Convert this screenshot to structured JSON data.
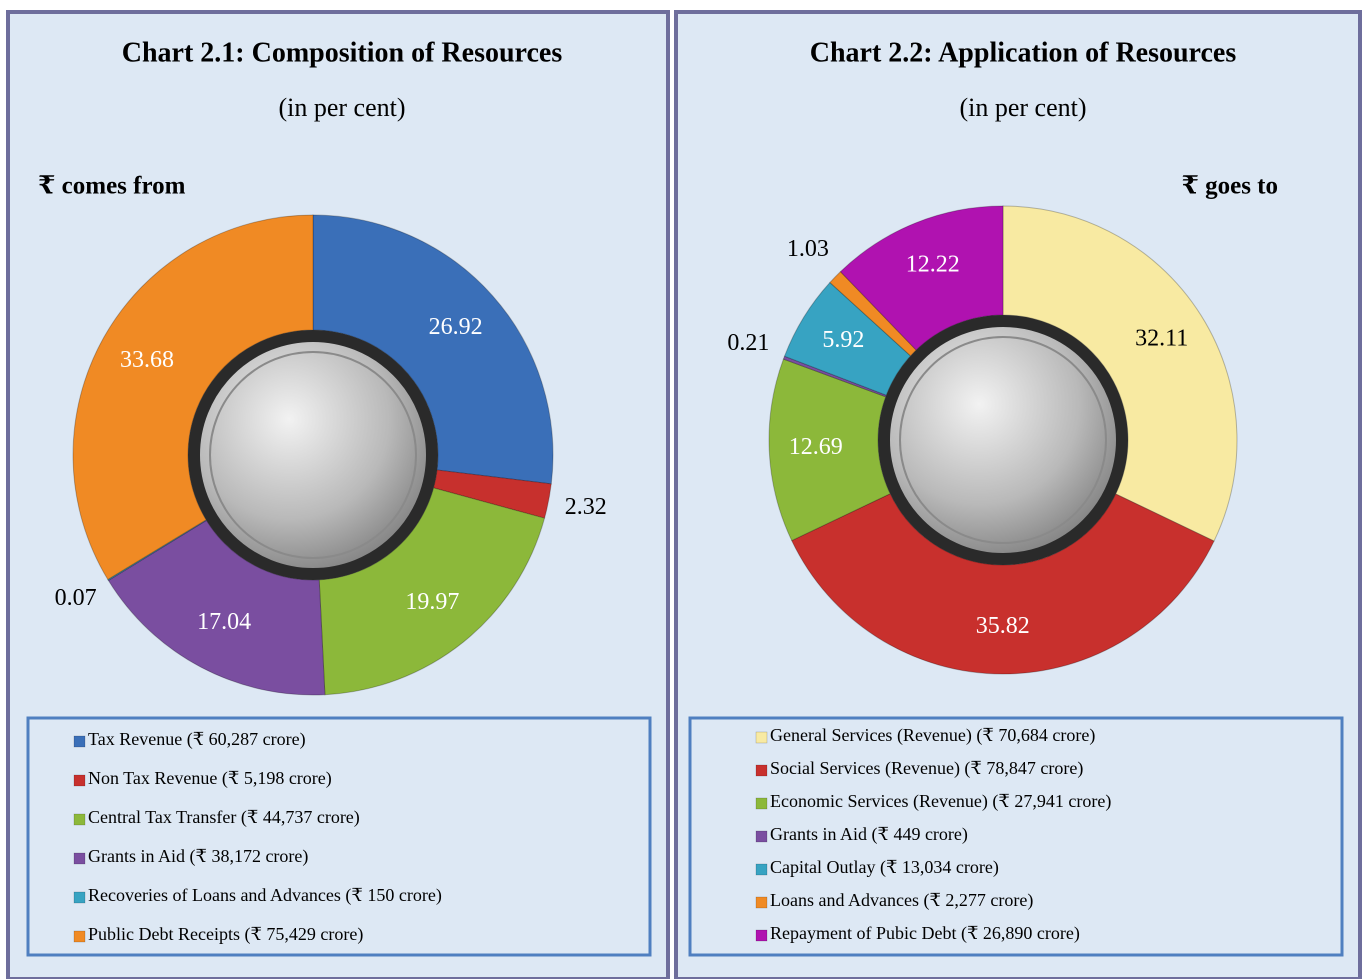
{
  "chart_data": [
    {
      "type": "donut",
      "title": "Chart 2.1: Composition of Resources",
      "subtitle": "(in per cent)",
      "header": "₹ comes from",
      "categories": [
        "Tax Revenue (₹ 60,287 crore)",
        "Non Tax Revenue (₹ 5,198 crore)",
        "Central Tax Transfer (₹ 44,737 crore)",
        "Grants in Aid (₹ 38,172 crore)",
        "Recoveries of Loans and Advances (₹ 150 crore)",
        "Public Debt Receipts (₹ 75,429 crore)"
      ],
      "values": [
        26.92,
        2.32,
        19.97,
        17.04,
        0.07,
        33.68
      ],
      "colors": [
        "#3a6fb8",
        "#c7302d",
        "#8cb83a",
        "#7a4ea0",
        "#37a3c2",
        "#f08a24"
      ]
    },
    {
      "type": "donut",
      "title": "Chart 2.2: Application of Resources",
      "subtitle": "(in per cent)",
      "header": "₹ goes to",
      "categories": [
        "General Services (Revenue) (₹ 70,684 crore)",
        "Social Services (Revenue) (₹ 78,847 crore)",
        "Economic Services (Revenue) (₹ 27,941 crore)",
        "Grants in Aid (₹ 449 crore)",
        "Capital Outlay (₹ 13,034 crore)",
        "Loans and Advances (₹ 2,277 crore)",
        "Repayment of Pubic Debt (₹ 26,890 crore)"
      ],
      "values": [
        32.11,
        35.82,
        12.69,
        0.21,
        5.92,
        1.03,
        12.22
      ],
      "colors": [
        "#f8eaa2",
        "#c8302d",
        "#8cb83a",
        "#7a4ea0",
        "#37a3c2",
        "#f08a24",
        "#b012b0"
      ]
    }
  ]
}
